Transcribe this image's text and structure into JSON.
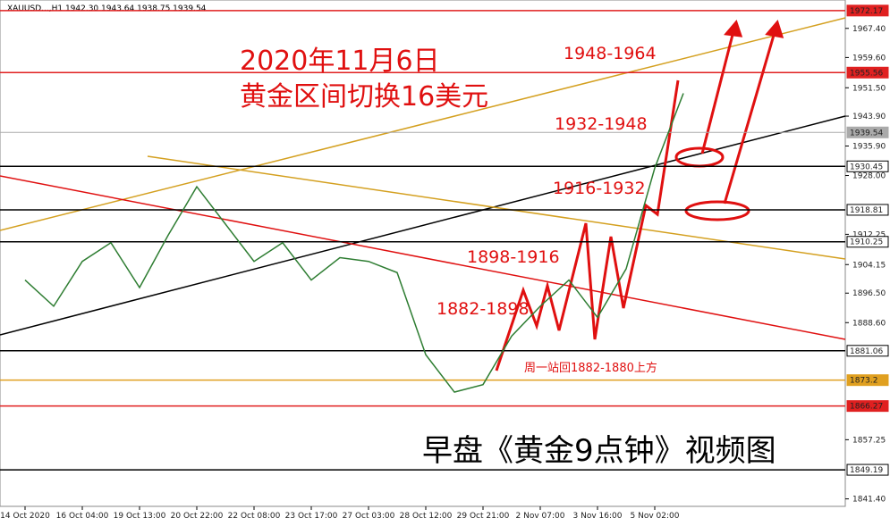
{
  "header": "XAUUSD...,H1  1942.30 1943.64 1938.75 1939.54",
  "chart_data": {
    "type": "line",
    "title": "2020年11月6日",
    "subtitle": "黄金区间切换16美元",
    "watermark": "早盘《黄金9点钟》视频图",
    "annotations": [
      "1948-1964",
      "1932-1948",
      "1916-1932",
      "1898-1916",
      "1882-1898",
      "周一站回1882-1880上方"
    ],
    "categories": [
      "14 Oct 2020",
      null,
      "16 Oct 04:00",
      null,
      "19 Oct 13:00",
      null,
      "20 Oct 22:00",
      null,
      "22 Oct 08:00",
      null,
      "23 Oct 17:00",
      null,
      "27 Oct 03:00",
      null,
      "28 Oct 12:00",
      null,
      "29 Oct 21:00",
      null,
      "2 Nov 07:00",
      null,
      "3 Nov 16:00",
      null,
      "5 Nov 02:00",
      null
    ],
    "series": [
      {
        "name": "XAUUSD",
        "color": "#2e7d32",
        "values": [
          1900,
          1893,
          1905,
          1910,
          1898,
          1912,
          1925,
          1915,
          1905,
          1910,
          1900,
          1906,
          1905,
          1902,
          1880,
          1870,
          1872,
          1885,
          1893,
          1900,
          1890,
          1903,
          1930,
          1950
        ]
      }
    ],
    "ylim": [
      1839.4,
      1975.0
    ],
    "yticks": [
      {
        "value": 1967.4,
        "label": "1967.40"
      },
      {
        "value": 1959.6,
        "label": "1959.60"
      },
      {
        "value": 1951.5,
        "label": "1951.50"
      },
      {
        "value": 1943.9,
        "label": "1943.90"
      },
      {
        "value": 1935.9,
        "label": "1935.90"
      },
      {
        "value": 1928.0,
        "label": "1928.00"
      },
      1912.25,
      1904.15,
      {
        "value": 1896.5,
        "label": "1896.50"
      },
      {
        "value": 1888.6,
        "label": "1888.60"
      },
      1857.25,
      {
        "value": 1841.4,
        "label": "1841.40"
      }
    ],
    "levels": [
      {
        "value": 1972.17,
        "color": "#e02020"
      },
      {
        "value": 1955.56,
        "color": "#e02020"
      },
      {
        "value": 1939.54,
        "color": "#aaaaaa"
      },
      {
        "value": 1930.45,
        "color": "#000000"
      },
      {
        "value": 1918.81,
        "color": "#000000"
      },
      {
        "value": 1910.25,
        "color": "#000000"
      },
      {
        "value": 1881.06,
        "color": "#000000"
      },
      {
        "value": 1873.2,
        "color": "#e0a020"
      },
      {
        "value": 1866.27,
        "color": "#e02020"
      },
      {
        "value": 1849.19,
        "color": "#000000"
      }
    ]
  }
}
